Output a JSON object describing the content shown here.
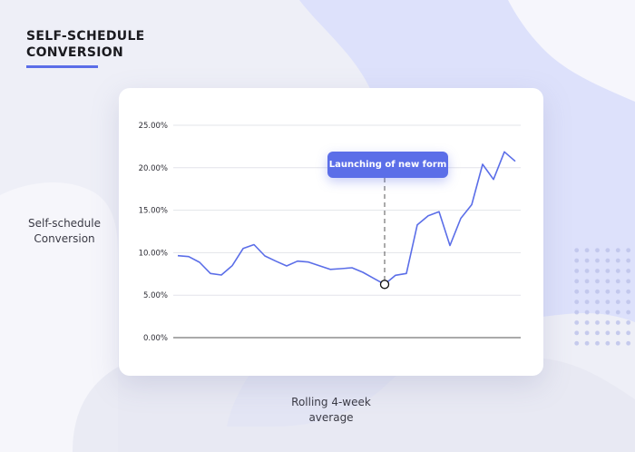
{
  "header": {
    "title_line1": "SELF-SCHEDULE",
    "title_line2": "CONVERSION",
    "accent_color": "#5b6ee8"
  },
  "axis_captions": {
    "y_line1": "Self-schedule",
    "y_line2": "Conversion",
    "x_line1": "Rolling 4-week",
    "x_line2": "average"
  },
  "annotation": {
    "label": "Launching of new form",
    "point_index": 19
  },
  "colors": {
    "line": "#5b6ee8",
    "grid": "#e3e4ea",
    "axis": "#555555",
    "tooltip_bg": "#5b6ee8",
    "background_blob": "#dde1fb"
  },
  "chart_data": {
    "type": "line",
    "title": "Self-schedule Conversion",
    "xlabel": "Rolling 4-week average",
    "ylabel": "Self-schedule Conversion",
    "ylim": [
      0,
      25
    ],
    "yticks": [
      "0.00%",
      "5.00%",
      "10.00%",
      "15.00%",
      "20.00%",
      "25.00%"
    ],
    "grid": true,
    "legend": null,
    "x": [
      1,
      2,
      3,
      4,
      5,
      6,
      7,
      8,
      9,
      10,
      11,
      12,
      13,
      14,
      15,
      16,
      17,
      18,
      19,
      20,
      21,
      22,
      23,
      24,
      25,
      26,
      27,
      28,
      29,
      30,
      31,
      32
    ],
    "series": [
      {
        "name": "Self-schedule Conversion",
        "values": [
          9.65,
          9.54,
          8.87,
          7.55,
          7.37,
          8.47,
          10.49,
          10.95,
          9.62,
          9.01,
          8.44,
          9.01,
          8.9,
          8.46,
          8.03,
          8.12,
          8.23,
          7.69,
          6.98,
          6.27,
          7.34,
          7.55,
          13.28,
          14.35,
          14.82,
          10.84,
          14.05,
          15.65,
          20.41,
          18.62,
          21.87,
          20.76
        ]
      }
    ],
    "annotations": [
      {
        "x_index": 19,
        "text": "Launching of new form"
      }
    ]
  }
}
